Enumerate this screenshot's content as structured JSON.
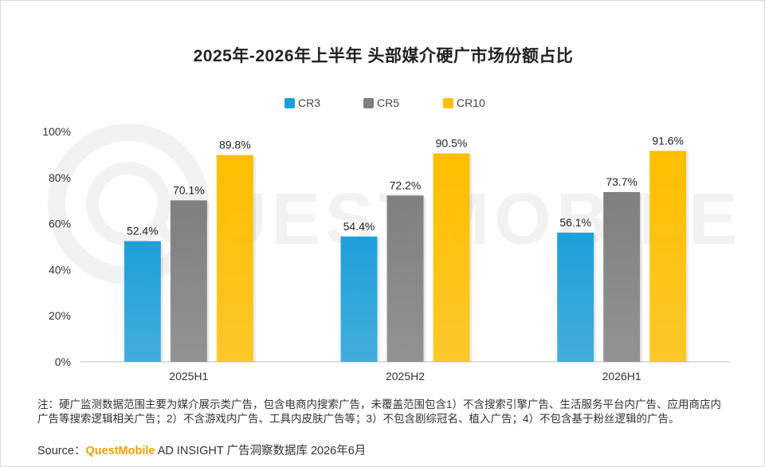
{
  "chart_data": {
    "type": "bar",
    "title": "2025年-2026年上半年 头部媒介硬广市场份额占比",
    "categories": [
      "2025H1",
      "2025H2",
      "2026H1"
    ],
    "series": [
      {
        "name": "CR3",
        "values": [
          52.4,
          54.4,
          56.1
        ],
        "labels": [
          "52.4%",
          "54.4%",
          "56.1%"
        ],
        "color": "#1e9fd8"
      },
      {
        "name": "CR5",
        "values": [
          70.1,
          72.2,
          73.7
        ],
        "labels": [
          "70.1%",
          "72.2%",
          "73.7%"
        ],
        "color": "#7f7f7f"
      },
      {
        "name": "CR10",
        "values": [
          89.8,
          90.5,
          91.6
        ],
        "labels": [
          "89.8%",
          "90.5%",
          "91.6%"
        ],
        "color": "#ffbf00"
      }
    ],
    "ylim": [
      0,
      100
    ],
    "yticks": [
      "0%",
      "20%",
      "40%",
      "60%",
      "80%",
      "100%"
    ],
    "legend_position": "top-center",
    "grid": false
  },
  "watermark": "QUESTMOBILE",
  "footnote": "注：硬广监测数据范围主要为媒介展示类广告，包含电商内搜索广告，未覆盖范围包含1）不含搜索引擎广告、生活服务平台内广告、应用商店内广告等搜索逻辑相关广告；2）不含游戏内广告、工具内皮肤广告等；3）不包含剧综冠名、植入广告；4）不包含基于粉丝逻辑的广告。",
  "source": {
    "prefix": "Source：",
    "brand": "QuestMobile",
    "rest": " AD INSIGHT 广告洞察数据库 2026年6月"
  }
}
